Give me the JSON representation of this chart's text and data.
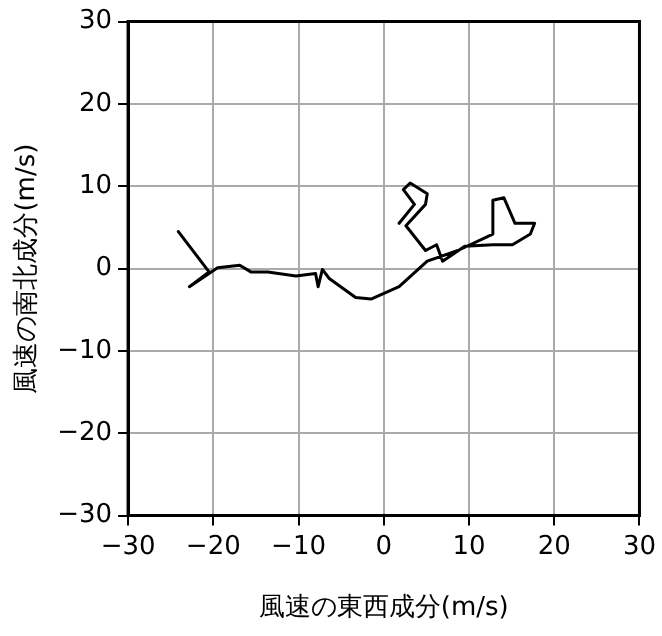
{
  "chart_data": {
    "type": "line",
    "xlabel": "風速の東西成分(m/s)",
    "ylabel": "風速の南北成分(m/s)",
    "xlim": [
      -30,
      30
    ],
    "ylim": [
      -30,
      30
    ],
    "xticks": [
      -30,
      -20,
      -10,
      0,
      10,
      20,
      30
    ],
    "yticks": [
      -30,
      -20,
      -10,
      0,
      10,
      20,
      30
    ],
    "grid": true,
    "legend": false,
    "marker": "none",
    "line_style": "solid",
    "series": [
      {
        "color": "#000000",
        "x": [
          -24.1,
          -20.5,
          -22.8,
          -19.5,
          -16.9,
          -15.6,
          -13.6,
          -10.3,
          -8,
          -7.7,
          -7.2,
          -6.4,
          -3.3,
          -1.5,
          1.8,
          5.1,
          8.7,
          12.8,
          12.8,
          14.1,
          15.4,
          17.7,
          17.2,
          15.1,
          12.8,
          9.5,
          6.9,
          6.2,
          4.9,
          2.6,
          4.9,
          5.1,
          3.1,
          2.3,
          3.6,
          1.8
        ],
        "values": [
          4.5,
          -0.4,
          -2.2,
          0.1,
          0.4,
          -0.4,
          -0.4,
          -0.9,
          -0.6,
          -2.2,
          -0.1,
          -1.2,
          -3.5,
          -3.7,
          -2.2,
          0.9,
          2.2,
          4.2,
          8.3,
          8.6,
          5.5,
          5.5,
          4.2,
          2.9,
          2.9,
          2.7,
          0.9,
          2.9,
          2.2,
          5.2,
          7.8,
          9.1,
          10.4,
          9.6,
          7.8,
          5.5
        ]
      }
    ]
  }
}
